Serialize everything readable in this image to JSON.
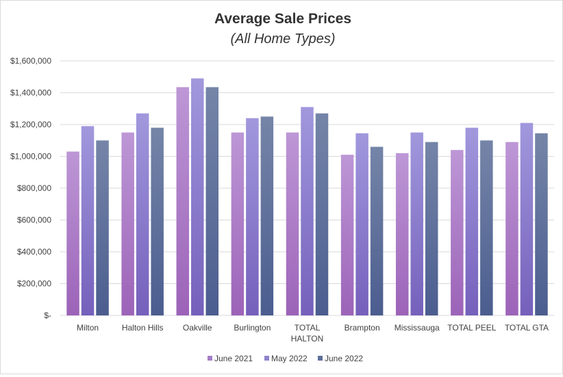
{
  "chart_data": {
    "type": "bar",
    "title": "Average Sale Prices",
    "subtitle": "(All Home Types)",
    "xlabel": "",
    "ylabel": "",
    "ylim": [
      0,
      1600000
    ],
    "yticks": [
      0,
      200000,
      400000,
      600000,
      800000,
      1000000,
      1200000,
      1400000,
      1600000
    ],
    "ytick_labels": [
      "$-",
      "$200,000",
      "$400,000",
      "$600,000",
      "$800,000",
      "$1,000,000",
      "$1,200,000",
      "$1,400,000",
      "$1,600,000"
    ],
    "categories": [
      [
        "Milton"
      ],
      [
        "Halton Hills"
      ],
      [
        "Oakville"
      ],
      [
        "Burlington"
      ],
      [
        "TOTAL",
        "HALTON"
      ],
      [
        "Brampton"
      ],
      [
        "Mississauga"
      ],
      [
        "TOTAL PEEL"
      ],
      [
        "TOTAL GTA"
      ]
    ],
    "series": [
      {
        "name": "June 2021",
        "color": "#a57ec6",
        "values": [
          1030000,
          1150000,
          1435000,
          1150000,
          1150000,
          1010000,
          1020000,
          1040000,
          1090000
        ]
      },
      {
        "name": "May 2022",
        "color": "#8e82cc",
        "values": [
          1190000,
          1270000,
          1490000,
          1240000,
          1310000,
          1145000,
          1150000,
          1180000,
          1210000
        ]
      },
      {
        "name": "June 2022",
        "color": "#5c6f9a",
        "values": [
          1100000,
          1180000,
          1435000,
          1250000,
          1270000,
          1060000,
          1090000,
          1100000,
          1145000
        ]
      }
    ],
    "grid": true,
    "legend_position": "bottom"
  }
}
